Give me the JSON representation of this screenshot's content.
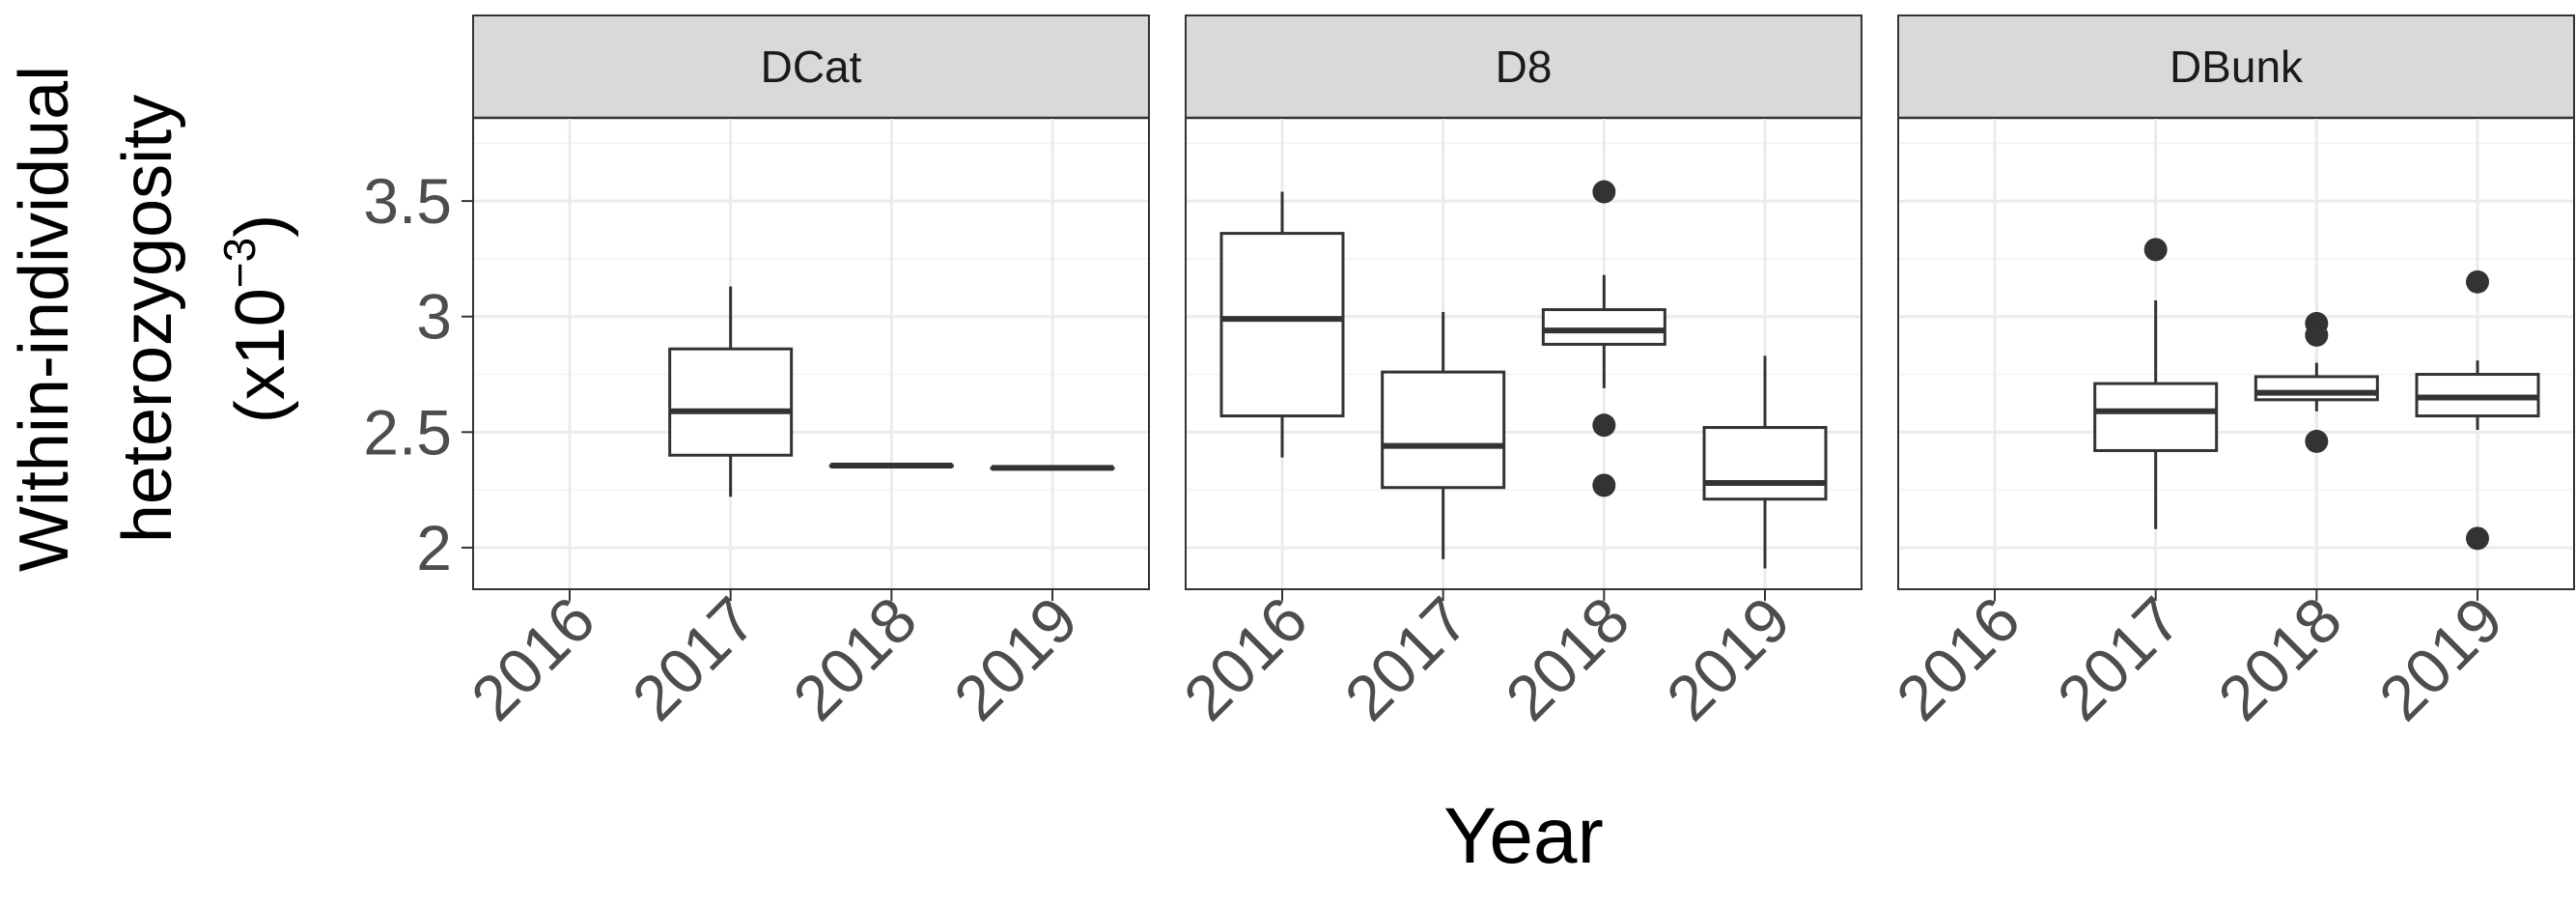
{
  "chart_data": {
    "type": "box",
    "xlabel": "Year",
    "ylabel_lines": [
      "Within-individual",
      "heterozygosity",
      "(x10",
      "−3",
      ")"
    ],
    "categories": [
      "2016",
      "2017",
      "2018",
      "2019"
    ],
    "yticks": [
      2,
      2.5,
      3,
      3.5
    ],
    "ytick_labels": [
      "2",
      "2.5",
      "3",
      "3.5"
    ],
    "ylim": [
      1.82,
      3.86
    ],
    "grid": true,
    "facets": [
      {
        "label": "DCat",
        "boxes": [
          {
            "x": "2017",
            "lower": 2.22,
            "q1": 2.4,
            "median": 2.59,
            "q3": 2.86,
            "upper": 3.13,
            "outliers": []
          },
          {
            "x": "2018",
            "lower": 2.355,
            "q1": 2.355,
            "median": 2.355,
            "q3": 2.355,
            "upper": 2.355,
            "outliers": []
          },
          {
            "x": "2019",
            "lower": 2.345,
            "q1": 2.345,
            "median": 2.345,
            "q3": 2.345,
            "upper": 2.345,
            "outliers": []
          }
        ]
      },
      {
        "label": "D8",
        "boxes": [
          {
            "x": "2016",
            "lower": 2.39,
            "q1": 2.57,
            "median": 2.99,
            "q3": 3.36,
            "upper": 3.54,
            "outliers": []
          },
          {
            "x": "2017",
            "lower": 1.95,
            "q1": 2.26,
            "median": 2.44,
            "q3": 2.76,
            "upper": 3.02,
            "outliers": []
          },
          {
            "x": "2018",
            "lower": 2.69,
            "q1": 2.88,
            "median": 2.94,
            "q3": 3.03,
            "upper": 3.18,
            "outliers": [
              3.54,
              2.53,
              2.27
            ]
          },
          {
            "x": "2019",
            "lower": 1.91,
            "q1": 2.21,
            "median": 2.28,
            "q3": 2.52,
            "upper": 2.83,
            "outliers": []
          }
        ]
      },
      {
        "label": "DBunk",
        "boxes": [
          {
            "x": "2017",
            "lower": 2.08,
            "q1": 2.42,
            "median": 2.59,
            "q3": 2.71,
            "upper": 3.07,
            "outliers": [
              3.29
            ]
          },
          {
            "x": "2018",
            "lower": 2.59,
            "q1": 2.64,
            "median": 2.67,
            "q3": 2.74,
            "upper": 2.8,
            "outliers": [
              2.97,
              2.92,
              2.46
            ]
          },
          {
            "x": "2019",
            "lower": 2.51,
            "q1": 2.57,
            "median": 2.65,
            "q3": 2.75,
            "upper": 2.81,
            "outliers": [
              3.15,
              2.04
            ]
          }
        ]
      }
    ]
  }
}
